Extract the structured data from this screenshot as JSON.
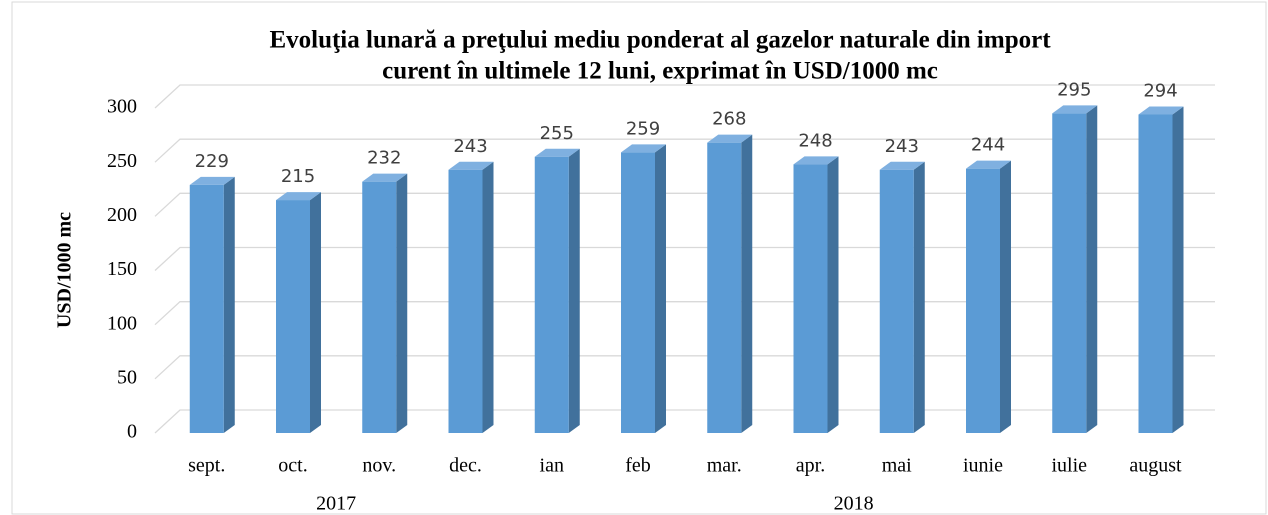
{
  "chart_data": {
    "type": "bar3d",
    "title": [
      "Evoluţia lunară a preţului mediu ponderat al gazelor naturale din import",
      "curent în ultimele 12 luni, exprimat în USD/1000 mc"
    ],
    "y_label": "USD/1000 mc",
    "categories": [
      "sept.",
      "oct.",
      "nov.",
      "dec.",
      "ian",
      "feb",
      "mar.",
      "apr.",
      "mai",
      "iunie",
      "iulie",
      "august"
    ],
    "x_groups": [
      {
        "label": "2017",
        "start": 0,
        "end": 3
      },
      {
        "label": "2018",
        "start": 4,
        "end": 11
      }
    ],
    "values": [
      229,
      215,
      232,
      243,
      255,
      259,
      268,
      248,
      243,
      244,
      295,
      294
    ],
    "color": "#5b9bd5",
    "ylim": [
      0,
      300
    ],
    "yticks": [
      0,
      50,
      100,
      150,
      200,
      250,
      300
    ],
    "grid": true
  }
}
